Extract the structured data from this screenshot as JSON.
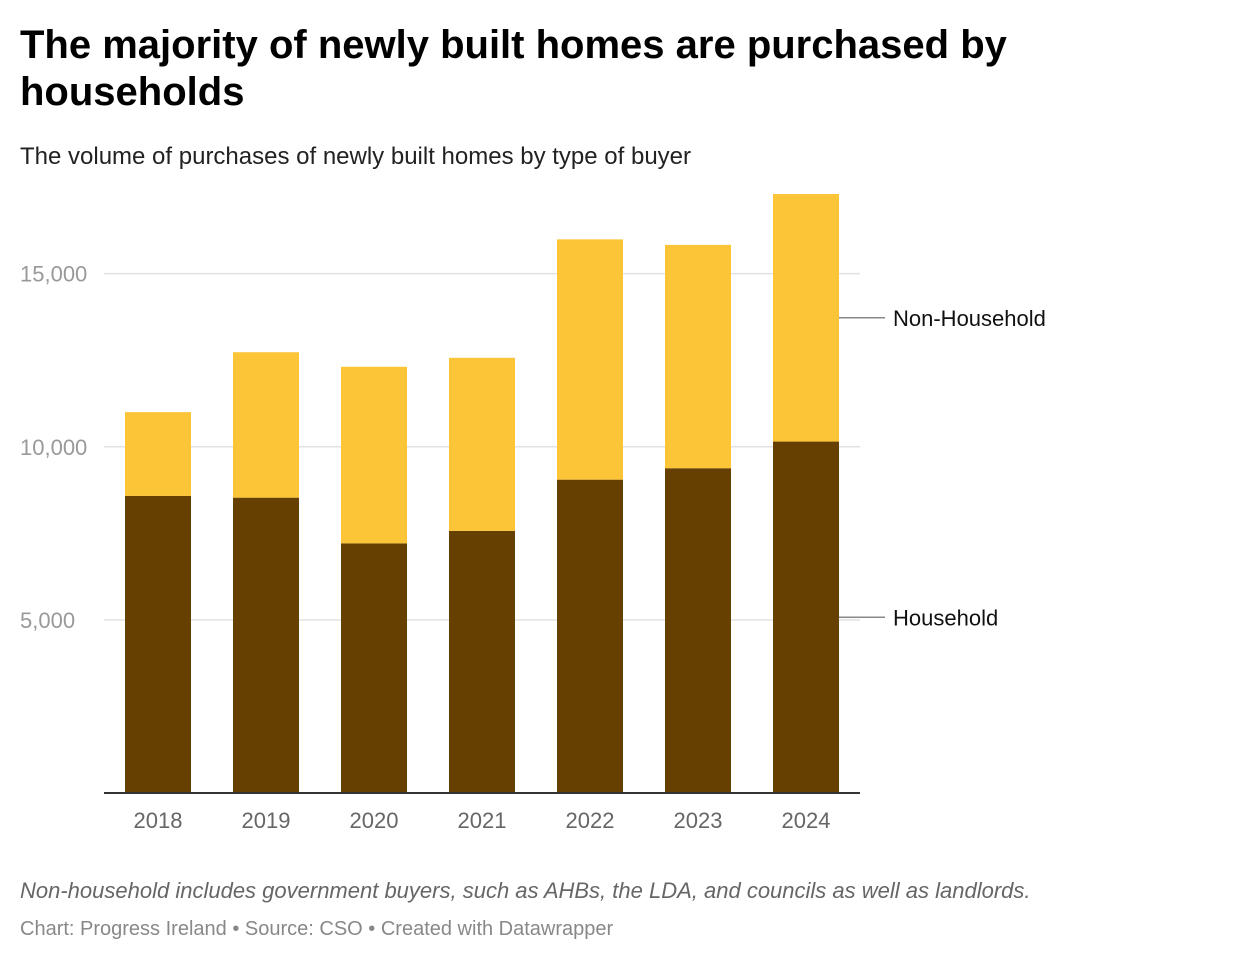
{
  "header": {
    "title": "The majority of newly built homes are purchased by households",
    "subtitle": "The volume of purchases of newly built homes by type of buyer"
  },
  "chart_data": {
    "type": "bar",
    "stacked": true,
    "title": "The majority of newly built homes are purchased by households",
    "subtitle": "The volume of purchases of newly built homes by type of buyer",
    "xlabel": "",
    "ylabel": "",
    "categories": [
      "2018",
      "2019",
      "2020",
      "2021",
      "2022",
      "2023",
      "2024"
    ],
    "series": [
      {
        "name": "Household",
        "color": "#654000",
        "values": [
          8580,
          8530,
          7210,
          7570,
          9050,
          9380,
          10150
        ]
      },
      {
        "name": "Non-Household",
        "color": "#fcc537",
        "values": [
          2420,
          4200,
          5100,
          5000,
          6940,
          6450,
          7150
        ]
      }
    ],
    "ylim": [
      0,
      17300
    ],
    "yticks": [
      5000,
      10000,
      15000
    ],
    "ytick_labels": [
      "5,000",
      "10,000",
      "15,000"
    ],
    "grid": true,
    "legend": "direct labels at right end of bars"
  },
  "footer": {
    "note": "Non-household includes government buyers, such as AHBs, the LDA, and councils as well as landlords.",
    "chart_credit": "Chart: Progress Ireland",
    "source": "Source: CSO",
    "created_with": "Created with Datawrapper",
    "separator": " • "
  },
  "colors": {
    "household": "#654000",
    "non_household": "#fcc537",
    "gridline": "#e2e2e2",
    "axis": "#333333"
  }
}
